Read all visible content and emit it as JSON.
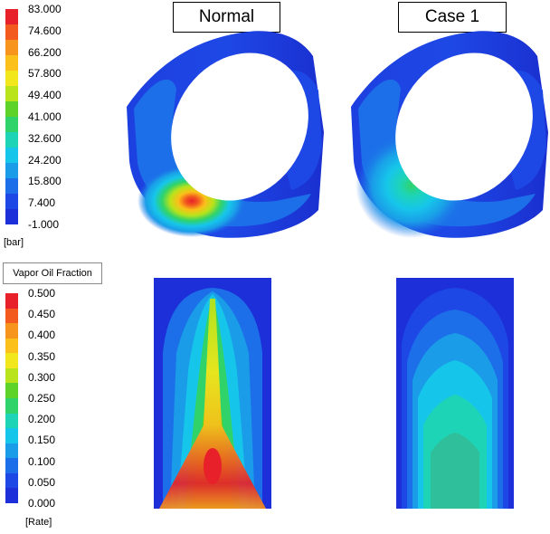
{
  "panels": {
    "normal_title": "Normal",
    "case1_title": "Case 1"
  },
  "pressure_legend": {
    "ticks": [
      "83.000",
      "74.600",
      "66.200",
      "57.800",
      "49.400",
      "41.000",
      "32.600",
      "24.200",
      "15.800",
      "7.400",
      "-1.000"
    ],
    "unit": "[bar]",
    "colors": [
      "#e8202a",
      "#f25a1e",
      "#f7941d",
      "#fbc01a",
      "#f2e71d",
      "#b9e31b",
      "#5dd32a",
      "#2fd36a",
      "#1ed4b6",
      "#16c6ea",
      "#1a9ce8",
      "#1c6fe8",
      "#1e48e6",
      "#1d2fd8"
    ]
  },
  "vapor_legend": {
    "title": "Vapor Oil Fraction",
    "ticks": [
      "0.500",
      "0.450",
      "0.400",
      "0.350",
      "0.300",
      "0.250",
      "0.200",
      "0.150",
      "0.100",
      "0.050",
      "0.000"
    ],
    "unit": "[Rate]",
    "colors": [
      "#e8202a",
      "#f25a1e",
      "#f7941d",
      "#fbc01a",
      "#f2e71d",
      "#b9e31b",
      "#5dd32a",
      "#2fd36a",
      "#1ed4b6",
      "#16c6ea",
      "#1a9ce8",
      "#1c6fe8",
      "#1e48e6",
      "#1d2fd8"
    ]
  }
}
